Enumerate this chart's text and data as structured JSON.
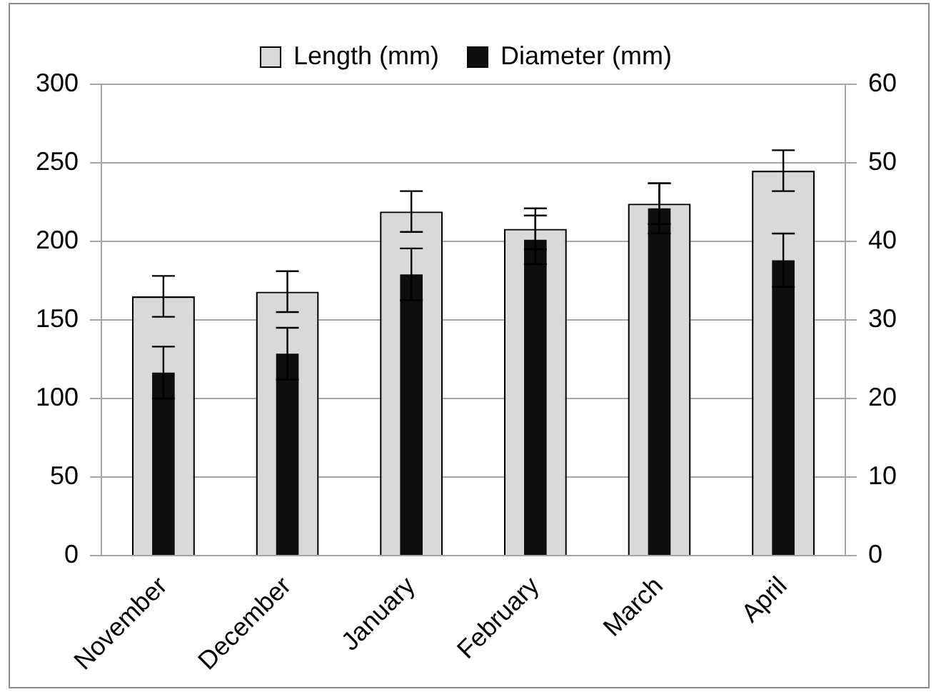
{
  "chart_data": {
    "type": "bar",
    "categories": [
      "November",
      "December",
      "January",
      "February",
      "March",
      "April"
    ],
    "series": [
      {
        "name": "Length (mm)",
        "color": "#d9d9d9",
        "values": [
          165,
          168,
          219,
          208,
          224,
          245
        ],
        "errors": [
          13,
          13,
          13,
          13,
          13,
          13
        ]
      },
      {
        "name": "Diameter (mm)",
        "color": "#0d0d0d",
        "axis": "y2",
        "values": [
          23.3,
          25.7,
          35.8,
          40.2,
          44.2,
          37.6
        ],
        "errors": [
          3.3,
          3.3,
          3.3,
          3.1,
          3.2,
          3.4
        ]
      }
    ],
    "ylim": [
      0,
      300
    ],
    "yticks": [
      0,
      50,
      100,
      150,
      200,
      250,
      300
    ],
    "y2lim": [
      0,
      60
    ],
    "y2ticks": [
      0,
      10,
      20,
      30,
      40,
      50,
      60
    ],
    "grid": "y",
    "legend": "top"
  }
}
